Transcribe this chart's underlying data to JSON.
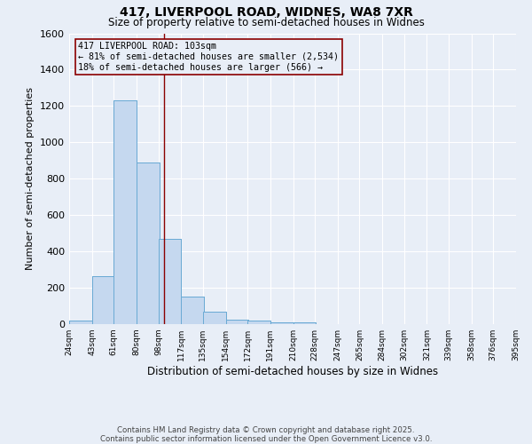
{
  "title1": "417, LIVERPOOL ROAD, WIDNES, WA8 7XR",
  "title2": "Size of property relative to semi-detached houses in Widnes",
  "xlabel": "Distribution of semi-detached houses by size in Widnes",
  "ylabel": "Number of semi-detached properties",
  "footnote": "Contains HM Land Registry data © Crown copyright and database right 2025.\nContains public sector information licensed under the Open Government Licence v3.0.",
  "annotation_line1": "417 LIVERPOOL ROAD: 103sqm",
  "annotation_line2": "← 81% of semi-detached houses are smaller (2,534)",
  "annotation_line3": "18% of semi-detached houses are larger (566) →",
  "bar_color": "#c5d8ef",
  "bar_edge_color": "#6aaad4",
  "bar_left_edges": [
    24,
    43,
    61,
    80,
    98,
    117,
    135,
    154,
    172,
    191,
    210,
    228,
    247,
    265,
    284,
    302,
    321,
    339,
    358,
    376
  ],
  "bar_heights": [
    20,
    265,
    1230,
    890,
    470,
    150,
    70,
    25,
    20,
    10,
    10,
    0,
    0,
    0,
    0,
    0,
    0,
    0,
    0,
    0
  ],
  "bin_width": 19,
  "all_bins": [
    24,
    43,
    61,
    80,
    98,
    117,
    135,
    154,
    172,
    191,
    210,
    228,
    247,
    265,
    284,
    302,
    321,
    339,
    358,
    376,
    395
  ],
  "x_tick_labels": [
    "24sqm",
    "43sqm",
    "61sqm",
    "80sqm",
    "98sqm",
    "117sqm",
    "135sqm",
    "154sqm",
    "172sqm",
    "191sqm",
    "210sqm",
    "228sqm",
    "247sqm",
    "265sqm",
    "284sqm",
    "302sqm",
    "321sqm",
    "339sqm",
    "358sqm",
    "376sqm",
    "395sqm"
  ],
  "red_line_x": 103,
  "ylim": [
    0,
    1600
  ],
  "yticks": [
    0,
    200,
    400,
    600,
    800,
    1000,
    1200,
    1400,
    1600
  ],
  "background_color": "#e8eef7",
  "grid_color": "#ffffff",
  "red_line_color": "#8b0000"
}
